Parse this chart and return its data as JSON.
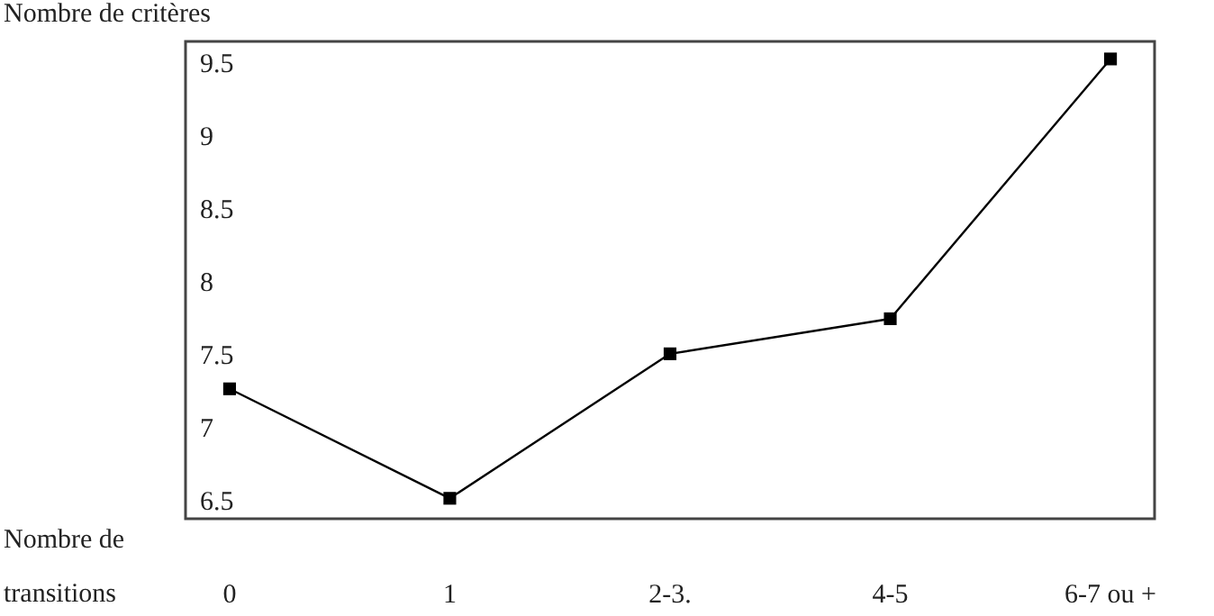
{
  "chart_data": {
    "type": "line",
    "ylabel": "Nombre de critères",
    "xlabel": "Nombre de transitions",
    "categories": [
      "0",
      "1",
      "2-3.",
      "4-5",
      "6-7 ou +"
    ],
    "series": [
      {
        "color": "#000000",
        "values": [
          7.27,
          6.52,
          7.51,
          7.75,
          9.53
        ]
      }
    ],
    "ylim": [
      6.38,
      9.65
    ],
    "yticks": [
      6.5,
      7,
      7.5,
      8,
      8.5,
      9,
      9.5
    ],
    "grid": false,
    "marker": "square",
    "line_style": "solid"
  }
}
